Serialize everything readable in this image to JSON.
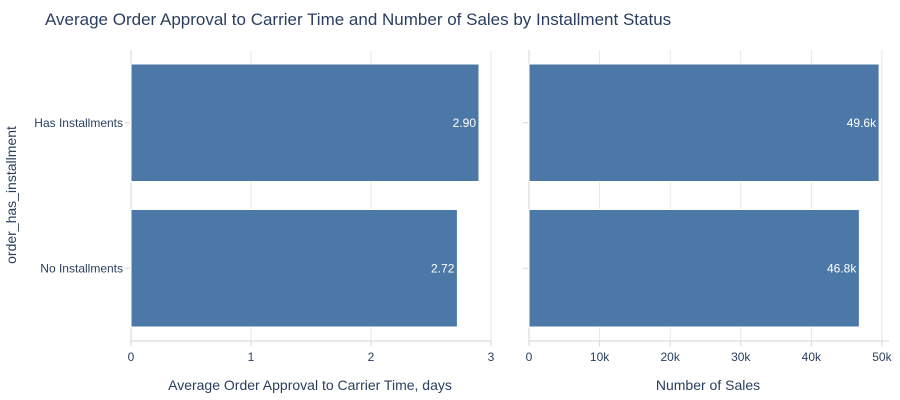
{
  "title": "Average Order Approval to Carrier Time and Number of Sales by Installment Status",
  "ylabel": "order_has_installment",
  "colors": {
    "bar": "#4c78a8",
    "bar_outline": "#ffffff",
    "text": "#2a3f5f",
    "grid": "#e8e8e8"
  },
  "chart_data": [
    {
      "type": "bar",
      "orientation": "horizontal",
      "categories": [
        "Has Installments",
        "No Installments"
      ],
      "values": [
        2.9,
        2.72
      ],
      "value_labels": [
        "2.90",
        "2.72"
      ],
      "xlabel": "Average Order Approval to Carrier Time, days",
      "ylabel": "order_has_installment",
      "xlim": [
        0,
        3.0
      ],
      "xticks": [
        0,
        1,
        2,
        3
      ],
      "xtick_labels": [
        "0",
        "1",
        "2",
        "3"
      ],
      "grid": true
    },
    {
      "type": "bar",
      "orientation": "horizontal",
      "categories": [
        "Has Installments",
        "No Installments"
      ],
      "values": [
        49600,
        46800
      ],
      "value_labels": [
        "49.6k",
        "46.8k"
      ],
      "xlabel": "Number of Sales",
      "xlim": [
        0,
        51000
      ],
      "xticks": [
        0,
        10000,
        20000,
        30000,
        40000,
        50000
      ],
      "xtick_labels": [
        "0",
        "10k",
        "20k",
        "30k",
        "40k",
        "50k"
      ],
      "grid": true
    }
  ]
}
